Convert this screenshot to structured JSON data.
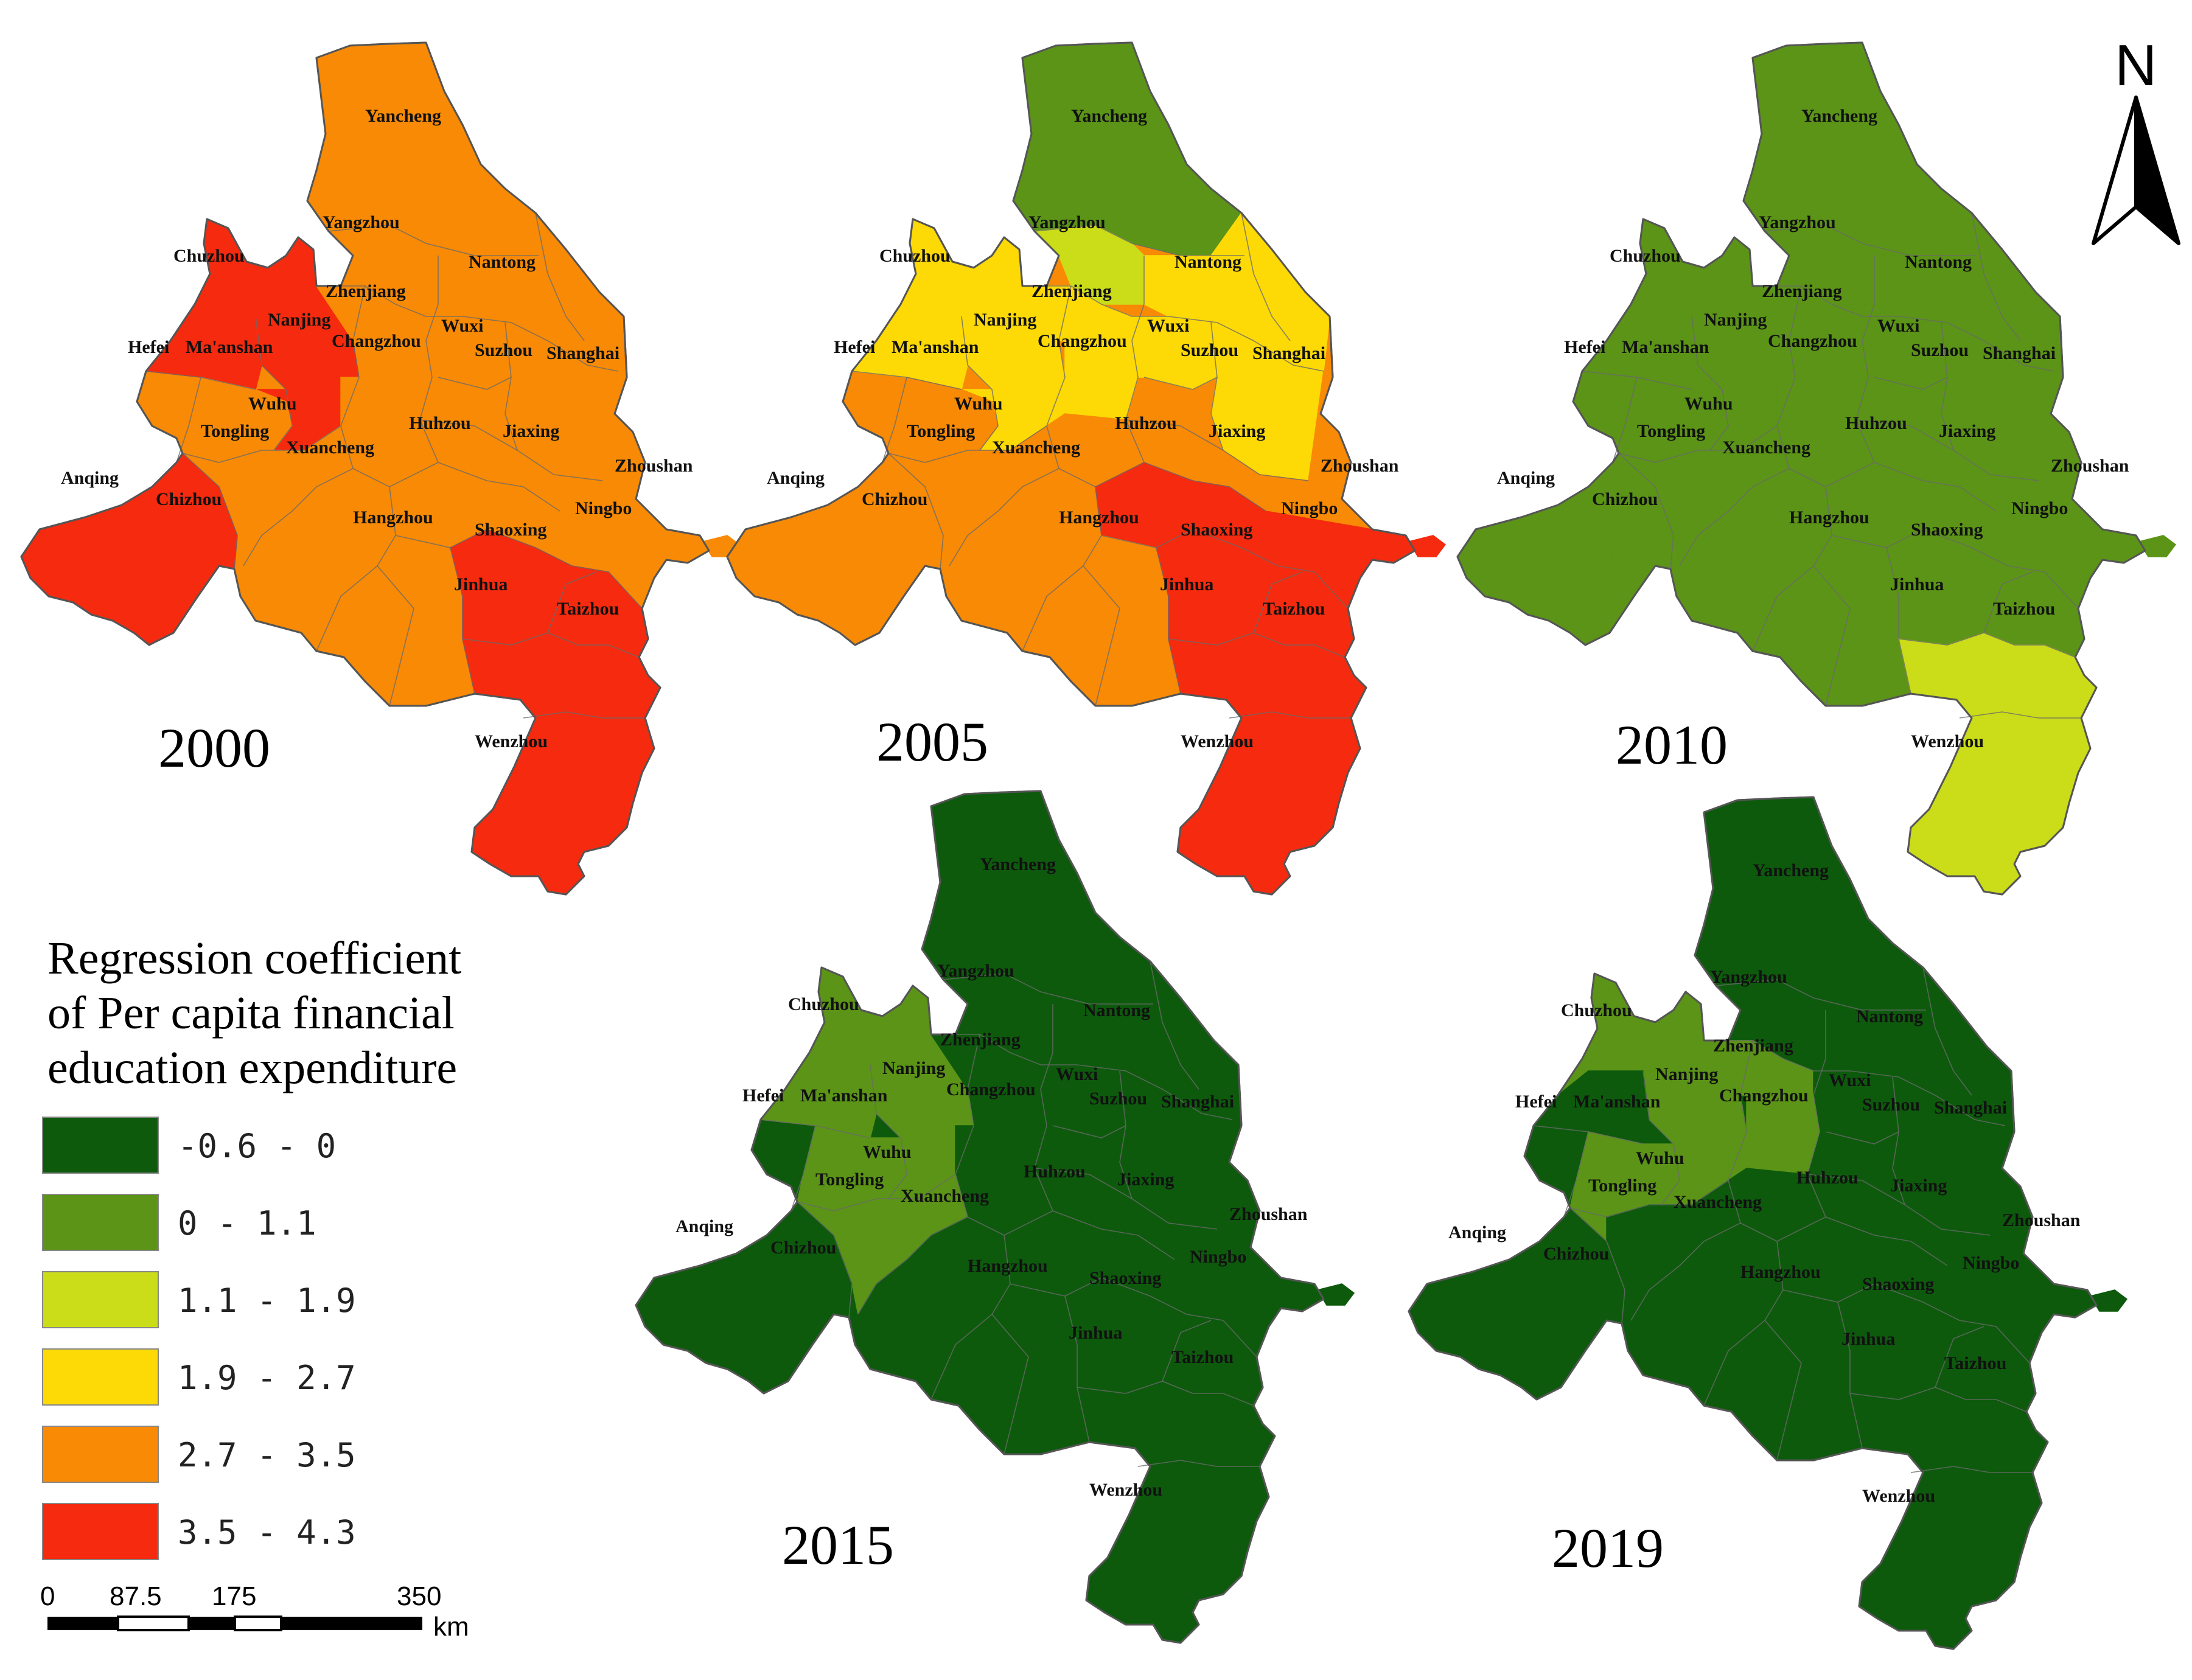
{
  "legend": {
    "title_lines": [
      "Regression coefficient",
      "of Per capita financial",
      "education expenditure"
    ],
    "classes": [
      {
        "range": "-0.6 - 0",
        "color": "#0d5a0d"
      },
      {
        "range": "0 - 1.1",
        "color": "#5b9417"
      },
      {
        "range": "1.1 - 1.9",
        "color": "#cbdc19"
      },
      {
        "range": "1.9 - 2.7",
        "color": "#fdd906"
      },
      {
        "range": "2.7 - 3.5",
        "color": "#f88a05"
      },
      {
        "range": "3.5 - 4.3",
        "color": "#f52a0e"
      }
    ]
  },
  "scale_bar": {
    "ticks": [
      "0",
      "87.5",
      "175",
      "350"
    ],
    "unit": "km"
  },
  "north_arrow": {
    "label": "N"
  },
  "cities": [
    "Yancheng",
    "Yangzhou",
    "Chuzhou",
    "Nantong",
    "Zhenjiang",
    "Nanjing",
    "Wuxi",
    "Hefei",
    "Ma'anshan",
    "Changzhou",
    "Suzhou",
    "Shanghai",
    "Wuhu",
    "Tongling",
    "Huhzou",
    "Jiaxing",
    "Xuancheng",
    "Zhoushan",
    "Anqing",
    "Chizhou",
    "Ningbo",
    "Hangzhou",
    "Shaoxing",
    "Jinhua",
    "Taizhou",
    "Wenzhou"
  ],
  "maps": [
    {
      "year": "2000",
      "classes": {
        "Yancheng": 4,
        "Yangzhou": 4,
        "Chuzhou": 5,
        "Nantong": 4,
        "Zhenjiang": 4,
        "Nanjing": 5,
        "Wuxi": 4,
        "Hefei": 5,
        "Ma'anshan": 5,
        "Changzhou": 4,
        "Suzhou": 4,
        "Shanghai": 4,
        "Wuhu": 4,
        "Tongling": 4,
        "Huhzou": 4,
        "Jiaxing": 4,
        "Xuancheng": 4,
        "Zhoushan": 4,
        "Anqing": 5,
        "Chizhou": 5,
        "Ningbo": 4,
        "Hangzhou": 4,
        "Shaoxing": 4,
        "Jinhua": 4,
        "Taizhou": 5,
        "Wenzhou": 5
      }
    },
    {
      "year": "2005",
      "classes": {
        "Yancheng": 1,
        "Yangzhou": 2,
        "Chuzhou": 3,
        "Nantong": 3,
        "Zhenjiang": 3,
        "Nanjing": 3,
        "Wuxi": 3,
        "Hefei": 3,
        "Ma'anshan": 3,
        "Changzhou": 3,
        "Suzhou": 3,
        "Shanghai": 4,
        "Wuhu": 4,
        "Tongling": 4,
        "Huhzou": 4,
        "Jiaxing": 4,
        "Xuancheng": 4,
        "Zhoushan": 5,
        "Anqing": 4,
        "Chizhou": 4,
        "Ningbo": 5,
        "Hangzhou": 4,
        "Shaoxing": 5,
        "Jinhua": 4,
        "Taizhou": 5,
        "Wenzhou": 5
      }
    },
    {
      "year": "2010",
      "classes": {
        "Yancheng": 1,
        "Yangzhou": 1,
        "Chuzhou": 1,
        "Nantong": 1,
        "Zhenjiang": 1,
        "Nanjing": 1,
        "Wuxi": 1,
        "Hefei": 1,
        "Ma'anshan": 1,
        "Changzhou": 1,
        "Suzhou": 1,
        "Shanghai": 1,
        "Wuhu": 1,
        "Tongling": 1,
        "Huhzou": 1,
        "Jiaxing": 1,
        "Xuancheng": 1,
        "Zhoushan": 1,
        "Anqing": 1,
        "Chizhou": 1,
        "Ningbo": 1,
        "Hangzhou": 1,
        "Shaoxing": 1,
        "Jinhua": 1,
        "Taizhou": 1,
        "Wenzhou": 2
      }
    },
    {
      "year": "2015",
      "classes": {
        "Yancheng": 0,
        "Yangzhou": 0,
        "Chuzhou": 1,
        "Nantong": 0,
        "Zhenjiang": 0,
        "Nanjing": 1,
        "Wuxi": 0,
        "Hefei": 1,
        "Ma'anshan": 1,
        "Changzhou": 0,
        "Suzhou": 0,
        "Shanghai": 0,
        "Wuhu": 1,
        "Tongling": 1,
        "Huhzou": 0,
        "Jiaxing": 0,
        "Xuancheng": 1,
        "Zhoushan": 0,
        "Anqing": 0,
        "Chizhou": 0,
        "Ningbo": 0,
        "Hangzhou": 0,
        "Shaoxing": 0,
        "Jinhua": 0,
        "Taizhou": 0,
        "Wenzhou": 0
      }
    },
    {
      "year": "2019",
      "classes": {
        "Yancheng": 0,
        "Yangzhou": 0,
        "Chuzhou": 1,
        "Nantong": 0,
        "Zhenjiang": 1,
        "Nanjing": 1,
        "Wuxi": 0,
        "Hefei": 0,
        "Ma'anshan": 1,
        "Changzhou": 1,
        "Suzhou": 0,
        "Shanghai": 0,
        "Wuhu": 1,
        "Tongling": 1,
        "Huhzou": 0,
        "Jiaxing": 0,
        "Xuancheng": 0,
        "Zhoushan": 0,
        "Anqing": 0,
        "Chizhou": 0,
        "Ningbo": 0,
        "Hangzhou": 0,
        "Shaoxing": 0,
        "Jinhua": 0,
        "Taizhou": 0,
        "Wenzhou": 0
      }
    }
  ]
}
